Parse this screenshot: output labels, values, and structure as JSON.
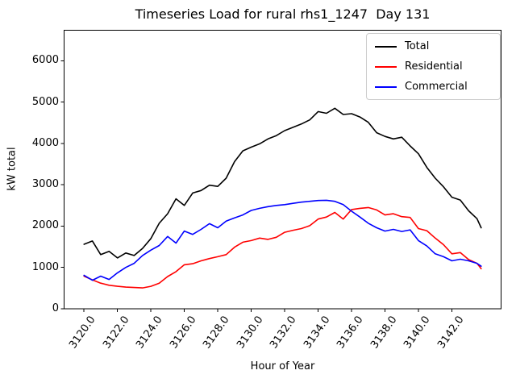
{
  "figure": {
    "title": "Timeseries Load for rural rhs1_1247  Day 131",
    "xlabel": "Hour of Year",
    "ylabel": "kW total"
  },
  "legend": {
    "position": "upper right",
    "items": [
      {
        "label": "Total",
        "color": "#000000"
      },
      {
        "label": "Residential",
        "color": "#ff0000"
      },
      {
        "label": "Commercial",
        "color": "#0000ff"
      }
    ]
  },
  "axis_style": {
    "spine_color": "#000000",
    "background": "#ffffff",
    "grid": false
  },
  "chart_data": {
    "type": "line",
    "title": "Timeseries Load for rural rhs1_1247  Day 131",
    "xlabel": "Hour of Year",
    "ylabel": "kW total",
    "xlim": [
      3118.81,
      3144.94
    ],
    "ylim": [
      0,
      6738
    ],
    "grid": false,
    "legend_position": "upper right",
    "xtick_values": [
      3120,
      3122,
      3124,
      3126,
      3128,
      3130,
      3132,
      3134,
      3136,
      3138,
      3140,
      3142
    ],
    "xtick_labels": [
      "3120.0",
      "3122.0",
      "3124.0",
      "3126.0",
      "3128.0",
      "3130.0",
      "3132.0",
      "3134.0",
      "3136.0",
      "3138.0",
      "3140.0",
      "3142.0"
    ],
    "ytick_values": [
      0,
      1000,
      2000,
      3000,
      4000,
      5000,
      6000
    ],
    "ytick_labels": [
      "0",
      "1000",
      "2000",
      "3000",
      "4000",
      "5000",
      "6000"
    ],
    "x": [
      3120,
      3120.5,
      3121,
      3121.5,
      3122,
      3122.5,
      3123,
      3123.5,
      3124,
      3124.5,
      3125,
      3125.5,
      3126,
      3126.5,
      3127,
      3127.5,
      3128,
      3128.5,
      3129,
      3129.5,
      3130,
      3130.5,
      3131,
      3131.5,
      3132,
      3132.5,
      3133,
      3133.5,
      3134,
      3134.5,
      3135,
      3135.5,
      3136,
      3136.5,
      3137,
      3137.5,
      3138,
      3138.5,
      3139,
      3139.5,
      3140,
      3140.5,
      3141,
      3141.5,
      3142,
      3142.5,
      3143,
      3143.5,
      3143.75
    ],
    "series": [
      {
        "name": "Total",
        "color": "#000000",
        "values": [
          1560,
          1640,
          1310,
          1390,
          1230,
          1350,
          1290,
          1460,
          1700,
          2070,
          2300,
          2660,
          2500,
          2800,
          2860,
          2990,
          2960,
          3160,
          3560,
          3820,
          3910,
          3990,
          4110,
          4190,
          4310,
          4390,
          4470,
          4570,
          4770,
          4730,
          4850,
          4700,
          4720,
          4640,
          4510,
          4260,
          4170,
          4110,
          4150,
          3940,
          3750,
          3420,
          3160,
          2950,
          2700,
          2630,
          2370,
          2180,
          1960
        ]
      },
      {
        "name": "Residential",
        "color": "#ff0000",
        "values": [
          790,
          700,
          620,
          570,
          545,
          525,
          515,
          505,
          545,
          620,
          780,
          900,
          1065,
          1090,
          1160,
          1215,
          1260,
          1310,
          1490,
          1610,
          1650,
          1710,
          1680,
          1730,
          1850,
          1900,
          1940,
          2010,
          2170,
          2220,
          2330,
          2170,
          2400,
          2430,
          2450,
          2390,
          2270,
          2300,
          2230,
          2210,
          1940,
          1890,
          1710,
          1550,
          1330,
          1360,
          1190,
          1100,
          970
        ]
      },
      {
        "name": "Commercial",
        "color": "#0000ff",
        "values": [
          810,
          690,
          790,
          710,
          870,
          1000,
          1100,
          1290,
          1420,
          1530,
          1750,
          1590,
          1880,
          1800,
          1920,
          2060,
          1960,
          2120,
          2200,
          2270,
          2380,
          2430,
          2470,
          2500,
          2520,
          2550,
          2580,
          2600,
          2620,
          2625,
          2600,
          2520,
          2360,
          2220,
          2070,
          1960,
          1880,
          1920,
          1870,
          1910,
          1650,
          1520,
          1330,
          1260,
          1160,
          1200,
          1160,
          1100,
          1030
        ]
      }
    ]
  }
}
